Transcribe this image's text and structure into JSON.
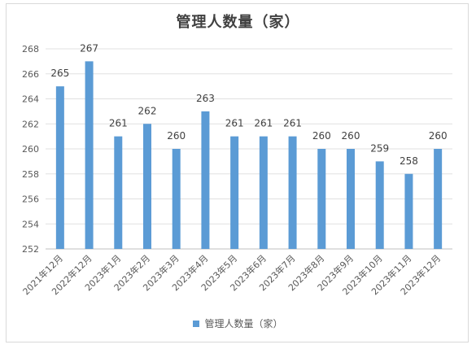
{
  "chart_data": {
    "type": "bar",
    "title": "管理人数量（家）",
    "categories": [
      "2021年12月",
      "2022年12月",
      "2023年1月",
      "2023年2月",
      "2023年3月",
      "2023年4月",
      "2023年5月",
      "2023年6月",
      "2023年7月",
      "2023年8月",
      "2023年9月",
      "2023年10月",
      "2023年11月",
      "2023年12月"
    ],
    "series": [
      {
        "name": "管理人数量（家）",
        "values": [
          265,
          267,
          261,
          262,
          260,
          263,
          261,
          261,
          261,
          260,
          260,
          259,
          258,
          260
        ],
        "color": "#5b9bd5"
      }
    ],
    "ylim": [
      252,
      268
    ],
    "yticks": [
      252,
      254,
      256,
      258,
      260,
      262,
      264,
      266,
      268
    ],
    "grid": true,
    "legend": "bottom"
  }
}
